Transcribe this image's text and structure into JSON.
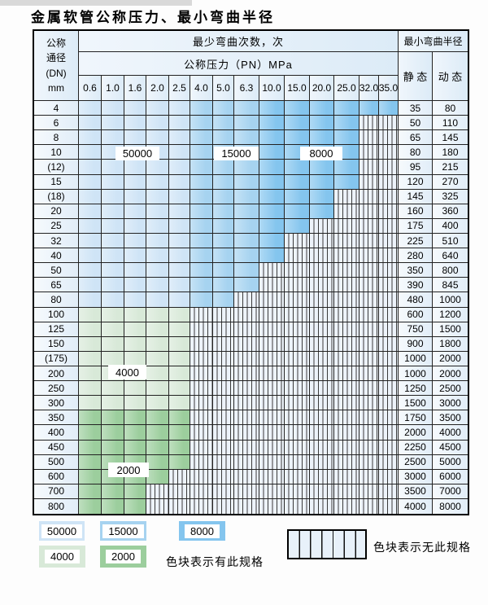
{
  "title": "金属软管公称压力、最小弯曲半径",
  "table": {
    "dn_header_lines": [
      "公称",
      "通径",
      "(DN)",
      "mm"
    ],
    "bend_cycles_header": "最少弯曲次数，次",
    "pn_header": "公称压力（PN）MPa",
    "pn_columns": [
      "0.6",
      "1.0",
      "1.6",
      "2.0",
      "2.5",
      "4.0",
      "5.0",
      "6.3",
      "10.0",
      "15.0",
      "20.0",
      "25.0",
      "32.0",
      "35.0"
    ],
    "radius_header": "最小弯曲半径",
    "static_header": "静 态",
    "dynamic_header": "动 态",
    "rows": [
      {
        "dn": "4",
        "zone": "blue",
        "colored": 14,
        "static": "35",
        "dynamic": "80"
      },
      {
        "dn": "6",
        "zone": "blue",
        "colored": 12,
        "static": "50",
        "dynamic": "110"
      },
      {
        "dn": "8",
        "zone": "blue",
        "colored": 12,
        "static": "65",
        "dynamic": "145"
      },
      {
        "dn": "10",
        "zone": "blue",
        "colored": 12,
        "static": "80",
        "dynamic": "180"
      },
      {
        "dn": "(12)",
        "zone": "blue",
        "colored": 12,
        "static": "95",
        "dynamic": "215"
      },
      {
        "dn": "15",
        "zone": "blue",
        "colored": 12,
        "static": "120",
        "dynamic": "270"
      },
      {
        "dn": "(18)",
        "zone": "blue",
        "colored": 11,
        "static": "145",
        "dynamic": "325"
      },
      {
        "dn": "20",
        "zone": "blue",
        "colored": 11,
        "static": "160",
        "dynamic": "360"
      },
      {
        "dn": "25",
        "zone": "blue",
        "colored": 10,
        "static": "175",
        "dynamic": "400"
      },
      {
        "dn": "32",
        "zone": "blue",
        "colored": 9,
        "static": "225",
        "dynamic": "510"
      },
      {
        "dn": "40",
        "zone": "blue",
        "colored": 9,
        "static": "280",
        "dynamic": "640"
      },
      {
        "dn": "50",
        "zone": "blue",
        "colored": 8,
        "static": "350",
        "dynamic": "800"
      },
      {
        "dn": "65",
        "zone": "blue",
        "colored": 8,
        "static": "390",
        "dynamic": "845"
      },
      {
        "dn": "80",
        "zone": "blue",
        "colored": 7,
        "static": "480",
        "dynamic": "1000"
      },
      {
        "dn": "100",
        "zone": "green_light",
        "colored": 5,
        "static": "600",
        "dynamic": "1200"
      },
      {
        "dn": "125",
        "zone": "green_light",
        "colored": 5,
        "static": "750",
        "dynamic": "1500"
      },
      {
        "dn": "150",
        "zone": "green_light",
        "colored": 5,
        "static": "900",
        "dynamic": "1800"
      },
      {
        "dn": "(175)",
        "zone": "green_light",
        "colored": 5,
        "static": "1000",
        "dynamic": "2000"
      },
      {
        "dn": "200",
        "zone": "green_light",
        "colored": 5,
        "static": "1000",
        "dynamic": "2000"
      },
      {
        "dn": "250",
        "zone": "green_light",
        "colored": 5,
        "static": "1250",
        "dynamic": "2500"
      },
      {
        "dn": "300",
        "zone": "green_light",
        "colored": 5,
        "static": "1500",
        "dynamic": "3000"
      },
      {
        "dn": "350",
        "zone": "green_dark",
        "colored": 5,
        "static": "1750",
        "dynamic": "3500"
      },
      {
        "dn": "400",
        "zone": "green_dark",
        "colored": 5,
        "static": "2000",
        "dynamic": "4000"
      },
      {
        "dn": "450",
        "zone": "green_dark",
        "colored": 5,
        "static": "2250",
        "dynamic": "4500"
      },
      {
        "dn": "500",
        "zone": "green_dark",
        "colored": 5,
        "static": "2500",
        "dynamic": "5000"
      },
      {
        "dn": "600",
        "zone": "green_dark",
        "colored": 4,
        "static": "3000",
        "dynamic": "6000"
      },
      {
        "dn": "700",
        "zone": "green_dark",
        "colored": 3,
        "static": "3500",
        "dynamic": "7000"
      },
      {
        "dn": "800",
        "zone": "green_dark",
        "colored": 3,
        "static": "4000",
        "dynamic": "8000"
      }
    ]
  },
  "overlays": {
    "b50000": "50000",
    "b15000": "15000",
    "b8000": "8000",
    "g4000": "4000",
    "g2000": "2000"
  },
  "legend": {
    "items": [
      {
        "label": "50000",
        "color_key": "blue_light"
      },
      {
        "label": "15000",
        "color_key": "blue_mid"
      },
      {
        "label": "8000",
        "color_key": "blue_dark"
      },
      {
        "label": "4000",
        "color_key": "green_light"
      },
      {
        "label": "2000",
        "color_key": "green_dark"
      }
    ],
    "has_spec_text": "色块表示有此规格",
    "no_spec_text": "色块表示无此规格"
  },
  "colors": {
    "blue_light": "#cfe4f6",
    "blue_mid": "#a6d3f0",
    "blue_dark": "#84c5ee",
    "green_light": "#d8e9d8",
    "green_dark": "#9cce9d"
  }
}
